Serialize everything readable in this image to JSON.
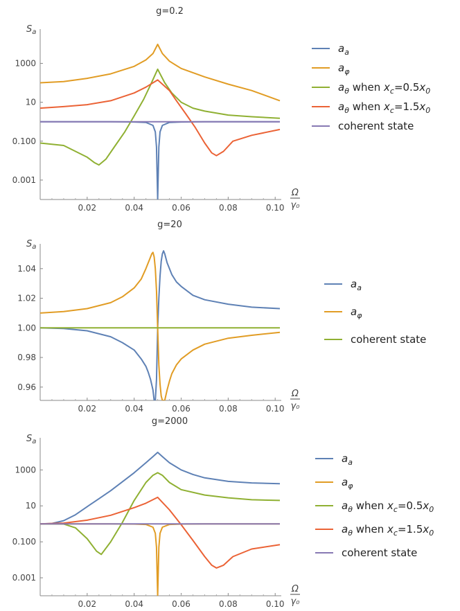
{
  "chart_data": [
    {
      "type": "line",
      "title": "g=0.2",
      "ylabel": "S_a",
      "xlabel_top": "Ω",
      "xlabel_bottom": "γ₀",
      "yscale": "log",
      "xlim": [
        0.0,
        0.102
      ],
      "ylim": [
        0.0001,
        30000
      ],
      "xticks": [
        "0.02",
        "0.04",
        "0.06",
        "0.08",
        "0.10"
      ],
      "xtick_values": [
        0.02,
        0.04,
        0.06,
        0.08,
        0.1
      ],
      "yticks": [
        "0.001",
        "0.100",
        "10",
        "1000"
      ],
      "ytick_values": [
        0.001,
        0.1,
        10,
        1000
      ],
      "grid": false,
      "legend_placement": "right",
      "series": [
        {
          "name": "a_a",
          "color": "#5e81b5",
          "x": [
            0.0,
            0.01,
            0.02,
            0.03,
            0.04,
            0.045,
            0.048,
            0.049,
            0.0495,
            0.05,
            0.0505,
            0.051,
            0.052,
            0.055,
            0.06,
            0.07,
            0.08,
            0.09,
            0.102
          ],
          "y": [
            1.0,
            1.0,
            1.0,
            0.99,
            0.97,
            0.92,
            0.65,
            0.3,
            0.05,
            0.0001,
            0.05,
            0.3,
            0.65,
            0.92,
            0.97,
            0.99,
            1.0,
            1.0,
            1.0
          ]
        },
        {
          "name": "a_φ",
          "color": "#e19c24",
          "x": [
            0.0,
            0.01,
            0.02,
            0.03,
            0.04,
            0.045,
            0.048,
            0.05,
            0.052,
            0.055,
            0.06,
            0.07,
            0.08,
            0.09,
            0.102
          ],
          "y": [
            100,
            115,
            170,
            290,
            700,
            1500,
            3200,
            9500,
            3200,
            1300,
            550,
            200,
            85,
            40,
            12
          ]
        },
        {
          "name": "a_θ when x_c=0.5x_0",
          "color": "#8fb032",
          "x": [
            0.0,
            0.01,
            0.02,
            0.023,
            0.025,
            0.028,
            0.032,
            0.036,
            0.04,
            0.044,
            0.047,
            0.05,
            0.053,
            0.056,
            0.06,
            0.065,
            0.07,
            0.08,
            0.09,
            0.102
          ],
          "y": [
            0.08,
            0.06,
            0.015,
            0.008,
            0.006,
            0.012,
            0.06,
            0.3,
            2.0,
            14,
            80,
            500,
            100,
            30,
            10,
            5,
            3.5,
            2.2,
            1.8,
            1.5
          ]
        },
        {
          "name": "a_θ when x_c=1.5x_0",
          "color": "#eb6235",
          "x": [
            0.0,
            0.01,
            0.02,
            0.03,
            0.04,
            0.045,
            0.05,
            0.055,
            0.058,
            0.062,
            0.066,
            0.07,
            0.073,
            0.075,
            0.078,
            0.082,
            0.09,
            0.102
          ],
          "y": [
            5.0,
            6.0,
            7.5,
            12,
            30,
            60,
            140,
            40,
            12,
            2.5,
            0.5,
            0.08,
            0.025,
            0.018,
            0.03,
            0.1,
            0.2,
            0.4
          ]
        },
        {
          "name": "coherent state",
          "color": "#8778b3",
          "x": [
            0.0,
            0.102
          ],
          "y": [
            1.0,
            1.0
          ]
        }
      ],
      "legend": [
        {
          "name": "a_a",
          "color": "#5e81b5"
        },
        {
          "name": "a_φ",
          "color": "#e19c24"
        },
        {
          "name": "a_θ when x_c=0.5x_0",
          "color": "#8fb032"
        },
        {
          "name": "a_θ when x_c=1.5x_0",
          "color": "#eb6235"
        },
        {
          "name": "coherent state",
          "color": "#8778b3"
        }
      ]
    },
    {
      "type": "line",
      "title": "g=20",
      "ylabel": "S_a",
      "xlabel_top": "Ω",
      "xlabel_bottom": "γ₀",
      "yscale": "linear",
      "xlim": [
        0.0,
        0.102
      ],
      "ylim": [
        0.951,
        1.053
      ],
      "xticks": [
        "0.02",
        "0.04",
        "0.06",
        "0.08",
        "0.10"
      ],
      "xtick_values": [
        0.02,
        0.04,
        0.06,
        0.08,
        0.1
      ],
      "yticks": [
        "0.96",
        "0.98",
        "1.00",
        "1.02",
        "1.04"
      ],
      "ytick_values": [
        0.96,
        0.98,
        1.0,
        1.02,
        1.04
      ],
      "grid": false,
      "legend_placement": "right",
      "series": [
        {
          "name": "a_a",
          "color": "#5e81b5",
          "x": [
            0.0,
            0.01,
            0.02,
            0.03,
            0.035,
            0.04,
            0.043,
            0.045,
            0.046,
            0.047,
            0.048,
            0.0485,
            0.049,
            0.0495,
            0.05,
            0.0505,
            0.051,
            0.0515,
            0.052,
            0.0525,
            0.053,
            0.054,
            0.056,
            0.058,
            0.06,
            0.065,
            0.07,
            0.08,
            0.09,
            0.102
          ],
          "y": [
            1.0,
            0.9995,
            0.998,
            0.994,
            0.99,
            0.985,
            0.979,
            0.974,
            0.97,
            0.965,
            0.958,
            0.951,
            0.951,
            0.965,
            1.0,
            1.02,
            1.035,
            1.045,
            1.05,
            1.052,
            1.05,
            1.044,
            1.036,
            1.031,
            1.028,
            1.022,
            1.019,
            1.016,
            1.014,
            1.013
          ]
        },
        {
          "name": "a_φ",
          "color": "#e19c24",
          "x": [
            0.0,
            0.01,
            0.02,
            0.03,
            0.035,
            0.04,
            0.043,
            0.045,
            0.046,
            0.047,
            0.0475,
            0.048,
            0.0485,
            0.049,
            0.0495,
            0.05,
            0.0505,
            0.051,
            0.0515,
            0.052,
            0.053,
            0.054,
            0.055,
            0.056,
            0.058,
            0.06,
            0.065,
            0.07,
            0.08,
            0.09,
            0.102
          ],
          "y": [
            1.01,
            1.011,
            1.013,
            1.017,
            1.021,
            1.027,
            1.033,
            1.04,
            1.044,
            1.048,
            1.05,
            1.051,
            1.048,
            1.04,
            1.025,
            1.0,
            0.975,
            0.962,
            0.954,
            0.951,
            0.951,
            0.958,
            0.964,
            0.969,
            0.975,
            0.979,
            0.985,
            0.989,
            0.993,
            0.995,
            0.997
          ]
        },
        {
          "name": "coherent state",
          "color": "#8fb032",
          "x": [
            0.0,
            0.102
          ],
          "y": [
            1.0,
            1.0
          ]
        }
      ],
      "legend": [
        {
          "name": "a_a",
          "color": "#5e81b5"
        },
        {
          "name": "a_φ",
          "color": "#e19c24"
        },
        {
          "name": "coherent state",
          "color": "#8fb032"
        }
      ]
    },
    {
      "type": "line",
      "title": "g=2000",
      "ylabel": "S_a",
      "xlabel_top": "Ω",
      "xlabel_bottom": "γ₀",
      "yscale": "log",
      "xlim": [
        0.0,
        0.102
      ],
      "ylim": [
        0.0001,
        30000
      ],
      "xticks": [
        "0.02",
        "0.04",
        "0.06",
        "0.08",
        "0.10"
      ],
      "xtick_values": [
        0.02,
        0.04,
        0.06,
        0.08,
        0.1
      ],
      "yticks": [
        "0.001",
        "0.100",
        "10",
        "1000"
      ],
      "ytick_values": [
        0.001,
        0.1,
        10,
        1000
      ],
      "grid": false,
      "legend_placement": "right",
      "series": [
        {
          "name": "a_a",
          "color": "#5e81b5",
          "x": [
            0.0,
            0.005,
            0.01,
            0.015,
            0.02,
            0.025,
            0.03,
            0.035,
            0.04,
            0.045,
            0.048,
            0.05,
            0.052,
            0.055,
            0.06,
            0.065,
            0.07,
            0.08,
            0.09,
            0.102
          ],
          "y": [
            1.0,
            1.05,
            1.5,
            3.2,
            9,
            25,
            70,
            220,
            700,
            2500,
            5500,
            9500,
            5500,
            2500,
            1000,
            560,
            360,
            230,
            190,
            170
          ]
        },
        {
          "name": "a_φ",
          "color": "#e19c24",
          "x": [
            0.0,
            0.01,
            0.02,
            0.03,
            0.04,
            0.045,
            0.048,
            0.049,
            0.0495,
            0.05,
            0.0505,
            0.051,
            0.052,
            0.055,
            0.06,
            0.07,
            0.08,
            0.09,
            0.102
          ],
          "y": [
            1.0,
            1.0,
            1.0,
            0.99,
            0.97,
            0.92,
            0.65,
            0.3,
            0.05,
            0.0001,
            0.05,
            0.3,
            0.65,
            0.92,
            0.97,
            0.99,
            1.0,
            1.0,
            1.0
          ]
        },
        {
          "name": "a_θ when x_c=0.5x_0",
          "color": "#8fb032",
          "x": [
            0.0,
            0.01,
            0.015,
            0.02,
            0.024,
            0.026,
            0.03,
            0.035,
            0.04,
            0.045,
            0.048,
            0.05,
            0.052,
            0.055,
            0.06,
            0.07,
            0.08,
            0.09,
            0.102
          ],
          "y": [
            1.0,
            0.98,
            0.6,
            0.15,
            0.03,
            0.02,
            0.1,
            1.2,
            20,
            200,
            500,
            700,
            500,
            200,
            80,
            40,
            28,
            22,
            20
          ]
        },
        {
          "name": "a_θ when x_c=1.5x_0",
          "color": "#eb6235",
          "x": [
            0.0,
            0.01,
            0.02,
            0.03,
            0.04,
            0.045,
            0.05,
            0.055,
            0.06,
            0.065,
            0.07,
            0.073,
            0.075,
            0.078,
            0.082,
            0.09,
            0.102
          ],
          "y": [
            1.0,
            1.1,
            1.6,
            3.0,
            8.0,
            14,
            30,
            6,
            0.9,
            0.12,
            0.015,
            0.005,
            0.0035,
            0.005,
            0.015,
            0.04,
            0.07
          ]
        },
        {
          "name": "coherent state",
          "color": "#8778b3",
          "x": [
            0.0,
            0.102
          ],
          "y": [
            1.0,
            1.0
          ]
        }
      ],
      "legend": [
        {
          "name": "a_a",
          "color": "#5e81b5"
        },
        {
          "name": "a_φ",
          "color": "#e19c24"
        },
        {
          "name": "a_θ when x_c=0.5x_0",
          "color": "#8fb032"
        },
        {
          "name": "a_θ when x_c=1.5x_0",
          "color": "#eb6235"
        },
        {
          "name": "coherent state",
          "color": "#8778b3"
        }
      ]
    }
  ]
}
